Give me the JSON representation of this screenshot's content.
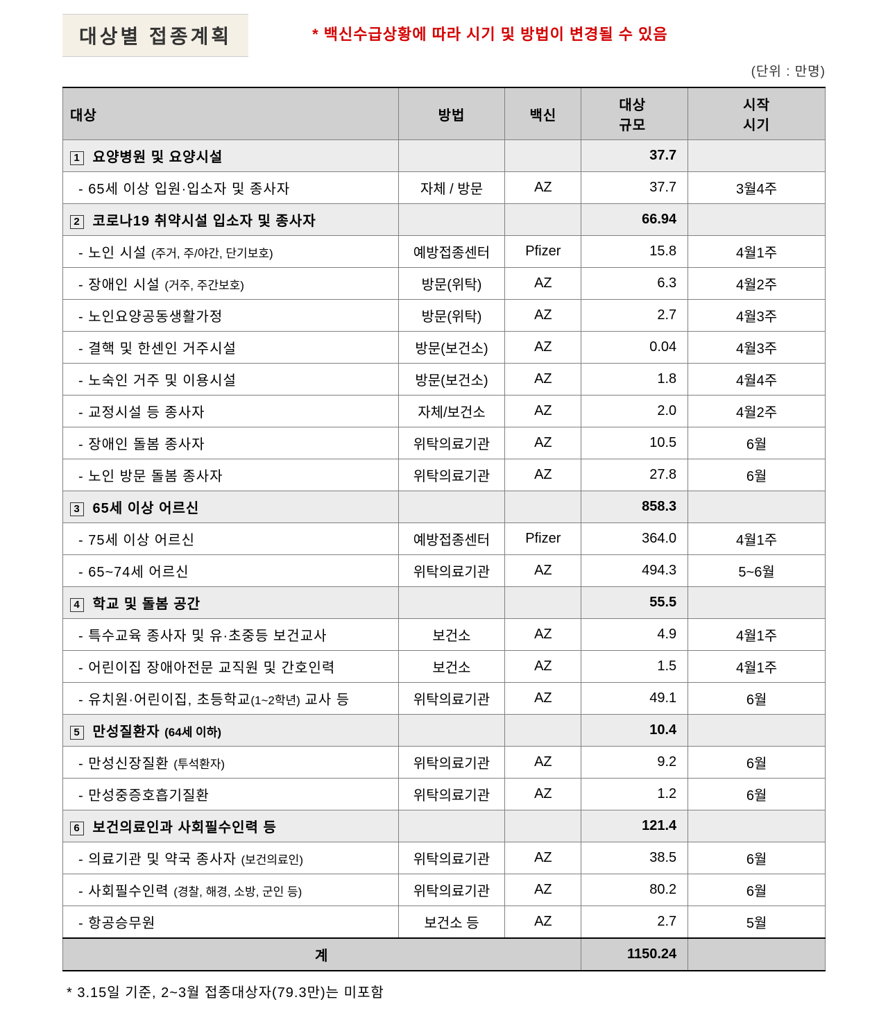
{
  "header": {
    "title": "대상별 접종계획",
    "warning": "* 백신수급상황에 따라 시기 및 방법이 변경될 수 있음",
    "unit": "(단위 : 만명)"
  },
  "table": {
    "columns": {
      "target": "대상",
      "method": "방법",
      "vaccine": "백신",
      "scale_line1": "대상",
      "scale_line2": "규모",
      "timing_line1": "시작",
      "timing_line2": "시기"
    },
    "rows": [
      {
        "type": "category",
        "num": "1",
        "target": "요양병원 및 요양시설",
        "method": "",
        "vaccine": "",
        "scale": "37.7",
        "timing": ""
      },
      {
        "type": "item",
        "target": "- 65세 이상 입원·입소자 및 종사자",
        "method": "자체 / 방문",
        "vaccine": "AZ",
        "scale": "37.7",
        "timing": "3월4주"
      },
      {
        "type": "category",
        "num": "2",
        "target": "코로나19 취약시설 입소자 및 종사자",
        "method": "",
        "vaccine": "",
        "scale": "66.94",
        "timing": ""
      },
      {
        "type": "item",
        "target": "- 노인 시설 ",
        "sub": "(주거, 주/야간, 단기보호)",
        "method": "예방접종센터",
        "vaccine": "Pfizer",
        "scale": "15.8",
        "timing": "4월1주"
      },
      {
        "type": "item",
        "target": "- 장애인 시설 ",
        "sub": "(거주, 주간보호)",
        "method": "방문(위탁)",
        "vaccine": "AZ",
        "scale": "6.3",
        "timing": "4월2주"
      },
      {
        "type": "item",
        "target": "- 노인요양공동생활가정",
        "method": "방문(위탁)",
        "vaccine": "AZ",
        "scale": "2.7",
        "timing": "4월3주"
      },
      {
        "type": "item",
        "target": "- 결핵 및 한센인 거주시설",
        "method": "방문(보건소)",
        "vaccine": "AZ",
        "scale": "0.04",
        "timing": "4월3주"
      },
      {
        "type": "item",
        "target": "- 노숙인 거주 및 이용시설",
        "method": "방문(보건소)",
        "vaccine": "AZ",
        "scale": "1.8",
        "timing": "4월4주"
      },
      {
        "type": "item",
        "target": "- 교정시설 등 종사자",
        "method": "자체/보건소",
        "vaccine": "AZ",
        "scale": "2.0",
        "timing": "4월2주"
      },
      {
        "type": "item",
        "target": "- 장애인 돌봄 종사자",
        "method": "위탁의료기관",
        "vaccine": "AZ",
        "scale": "10.5",
        "timing": "6월"
      },
      {
        "type": "item",
        "target": "- 노인 방문 돌봄 종사자",
        "method": "위탁의료기관",
        "vaccine": "AZ",
        "scale": "27.8",
        "timing": "6월"
      },
      {
        "type": "category",
        "num": "3",
        "target": "65세 이상 어르신",
        "method": "",
        "vaccine": "",
        "scale": "858.3",
        "timing": ""
      },
      {
        "type": "item",
        "target": "- 75세 이상 어르신",
        "method": "예방접종센터",
        "vaccine": "Pfizer",
        "scale": "364.0",
        "timing": "4월1주"
      },
      {
        "type": "item",
        "target": "- 65~74세 어르신",
        "method": "위탁의료기관",
        "vaccine": "AZ",
        "scale": "494.3",
        "timing": "5~6월"
      },
      {
        "type": "category",
        "num": "4",
        "target": "학교 및 돌봄 공간",
        "method": "",
        "vaccine": "",
        "scale": "55.5",
        "timing": ""
      },
      {
        "type": "item",
        "target": "- 특수교육 종사자 및 유·초중등 보건교사",
        "method": "보건소",
        "vaccine": "AZ",
        "scale": "4.9",
        "timing": "4월1주"
      },
      {
        "type": "item",
        "target": "- 어린이집 장애아전문 교직원 및 간호인력",
        "method": "보건소",
        "vaccine": "AZ",
        "scale": "1.5",
        "timing": "4월1주"
      },
      {
        "type": "item",
        "target": "- 유치원·어린이집, 초등학교",
        "sub": "(1~2학년)",
        "target2": " 교사 등",
        "method": "위탁의료기관",
        "vaccine": "AZ",
        "scale": "49.1",
        "timing": "6월"
      },
      {
        "type": "category",
        "num": "5",
        "target": "만성질환자 ",
        "sub": "(64세 이하)",
        "method": "",
        "vaccine": "",
        "scale": "10.4",
        "timing": ""
      },
      {
        "type": "item",
        "target": "- 만성신장질환 ",
        "sub": "(투석환자)",
        "method": "위탁의료기관",
        "vaccine": "AZ",
        "scale": "9.2",
        "timing": "6월"
      },
      {
        "type": "item",
        "target": "- 만성중증호흡기질환",
        "method": "위탁의료기관",
        "vaccine": "AZ",
        "scale": "1.2",
        "timing": "6월"
      },
      {
        "type": "category",
        "num": "6",
        "target": "보건의료인과 사회필수인력 등",
        "method": "",
        "vaccine": "",
        "scale": "121.4",
        "timing": ""
      },
      {
        "type": "item",
        "target": "- 의료기관 및 약국 종사자 ",
        "sub": "(보건의료인)",
        "method": "위탁의료기관",
        "vaccine": "AZ",
        "scale": "38.5",
        "timing": "6월"
      },
      {
        "type": "item",
        "target": "- 사회필수인력 ",
        "sub": "(경찰, 해경, 소방, 군인 등)",
        "method": "위탁의료기관",
        "vaccine": "AZ",
        "scale": "80.2",
        "timing": "6월"
      },
      {
        "type": "item",
        "target": "- 항공승무원",
        "method": "보건소 등",
        "vaccine": "AZ",
        "scale": "2.7",
        "timing": "5월"
      }
    ],
    "total": {
      "label": "계",
      "value": "1150.24"
    }
  },
  "footer_note": "* 3.15일 기준, 2~3월 접종대상자(79.3만)는 미포함"
}
